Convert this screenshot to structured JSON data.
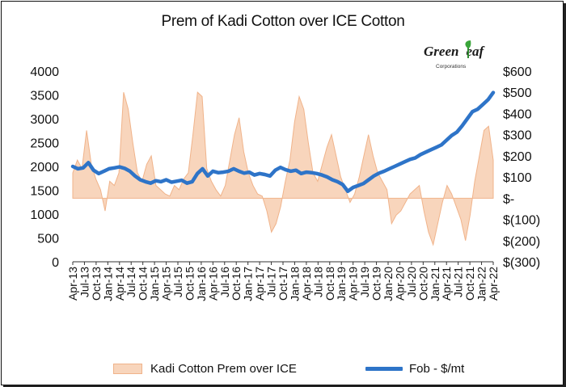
{
  "title": "Prem of Kadi Cotton over ICE Cotton",
  "logo": {
    "word_left": "Green",
    "word_right": "eaf",
    "subtitle": "Corporations"
  },
  "chart_data": {
    "type": "area+line",
    "title": "Prem of Kadi Cotton over ICE Cotton",
    "x_tick_labels": [
      "Apr-13",
      "Jul-13",
      "Oct-13",
      "Jan-14",
      "Apr-14",
      "Jul-14",
      "Oct-14",
      "Jan-15",
      "Apr-15",
      "Jul-15",
      "Oct-15",
      "Jan-16",
      "Apr-16",
      "Jul-16",
      "Oct-16",
      "Jan-17",
      "Apr-17",
      "Jul-17",
      "Oct-17",
      "Jan-18",
      "Apr-18",
      "Jul-18",
      "Oct-18",
      "Jan-19",
      "Apr-19",
      "Jul-19",
      "Oct-19",
      "Jan-20",
      "Apr-20",
      "Jul-20",
      "Oct-20",
      "Jan-21",
      "Apr-21",
      "Jul-21",
      "Oct-21",
      "Jan-22",
      "Apr-22"
    ],
    "left_axis": {
      "range": [
        0,
        4000
      ],
      "ticks": [
        "0",
        "500",
        "1000",
        "1500",
        "2000",
        "2500",
        "3000",
        "3500",
        "4000"
      ]
    },
    "right_axis": {
      "range": [
        -300,
        600
      ],
      "ticks": [
        "$(300)",
        "$(200)",
        "$(100)",
        "$-",
        "$100",
        "$200",
        "$300",
        "$400",
        "$500",
        "$600"
      ]
    },
    "grid": false,
    "legend_position": "bottom",
    "colors": {
      "area_fill": "#f8d5bc",
      "area_stroke": "#f0b38a",
      "line": "#2e74c8"
    },
    "series": [
      {
        "name": "Kadi Cotton Prem over ICE",
        "axis": "right",
        "kind": "area",
        "values": [
          120,
          180,
          140,
          320,
          160,
          90,
          40,
          -60,
          80,
          60,
          120,
          500,
          420,
          260,
          120,
          80,
          160,
          200,
          60,
          40,
          20,
          10,
          60,
          40,
          90,
          120,
          300,
          500,
          480,
          140,
          80,
          40,
          10,
          60,
          180,
          300,
          380,
          220,
          120,
          60,
          20,
          10,
          -60,
          -160,
          -120,
          -40,
          80,
          180,
          360,
          480,
          420,
          260,
          120,
          80,
          160,
          240,
          300,
          200,
          100,
          40,
          -20,
          20,
          100,
          200,
          300,
          200,
          120,
          80,
          40,
          -120,
          -80,
          -60,
          -20,
          20,
          40,
          60,
          -60,
          -160,
          -220,
          -120,
          -20,
          60,
          20,
          -40,
          -100,
          -200,
          -80,
          80,
          200,
          320,
          340,
          180
        ]
      },
      {
        "name": "Fob - $/mt",
        "axis": "left",
        "kind": "line",
        "values": [
          2000,
          1950,
          1970,
          2080,
          1920,
          1850,
          1900,
          1950,
          1970,
          1990,
          1960,
          1900,
          1800,
          1720,
          1680,
          1650,
          1700,
          1680,
          1720,
          1670,
          1690,
          1710,
          1650,
          1680,
          1850,
          1950,
          1800,
          1900,
          1870,
          1880,
          1900,
          1950,
          1900,
          1860,
          1880,
          1820,
          1850,
          1830,
          1800,
          1920,
          1980,
          1930,
          1900,
          1920,
          1850,
          1880,
          1870,
          1850,
          1820,
          1780,
          1720,
          1680,
          1620,
          1480,
          1560,
          1600,
          1640,
          1720,
          1800,
          1860,
          1900,
          1950,
          2000,
          2050,
          2100,
          2150,
          2180,
          2250,
          2300,
          2350,
          2400,
          2450,
          2550,
          2650,
          2720,
          2850,
          3000,
          3150,
          3200,
          3300,
          3400,
          3550
        ]
      }
    ]
  },
  "legend": {
    "area_label": "Kadi Cotton Prem over ICE",
    "line_label": "Fob - $/mt"
  }
}
